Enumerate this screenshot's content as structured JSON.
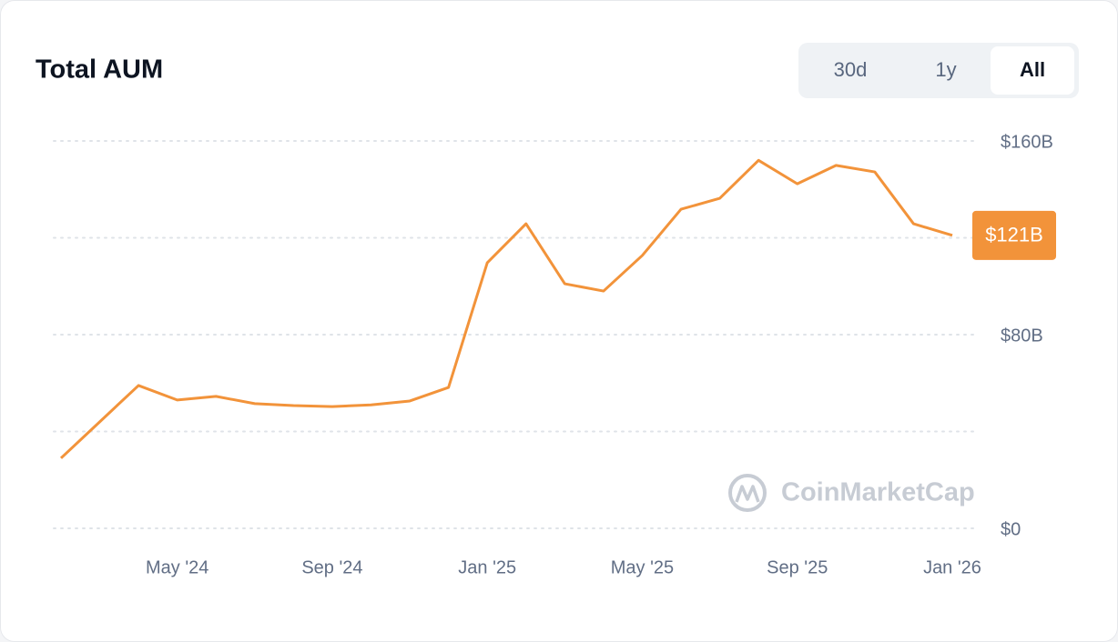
{
  "chart_data": {
    "type": "line",
    "title": "Total AUM",
    "range_options": [
      "30d",
      "1y",
      "All"
    ],
    "active_range": "All",
    "watermark": "CoinMarketCap",
    "x": [
      "2024-02",
      "2024-03",
      "2024-04",
      "2024-05",
      "2024-06",
      "2024-07",
      "2024-08",
      "2024-09",
      "2024-10",
      "2024-11",
      "2024-12",
      "2025-01",
      "2025-02",
      "2025-03",
      "2025-04",
      "2025-05",
      "2025-06",
      "2025-07",
      "2025-08",
      "2025-09",
      "2025-10",
      "2025-11",
      "2025-12",
      "2026-01"
    ],
    "series": [
      {
        "name": "Total AUM",
        "color": "#f2933a",
        "values": [
          29,
          44,
          59,
          53,
          54.5,
          51.5,
          50.7,
          50.3,
          51,
          52.6,
          58.2,
          109.7,
          125.8,
          101,
          98,
          112.7,
          131.8,
          136.3,
          152,
          142.3,
          149.9,
          147.2,
          125.8,
          121
        ],
        "value_labels": [
          null,
          null,
          null,
          null,
          null,
          null,
          null,
          null,
          null,
          null,
          null,
          null,
          null,
          null,
          null,
          null,
          null,
          null,
          null,
          null,
          null,
          null,
          null,
          "$121B"
        ]
      }
    ],
    "xlim": [
      "2024-02",
      "2026-01"
    ],
    "xticks": [
      {
        "value": "2024-05",
        "label": "May '24"
      },
      {
        "value": "2024-09",
        "label": "Sep '24"
      },
      {
        "value": "2025-01",
        "label": "Jan '25"
      },
      {
        "value": "2025-05",
        "label": "May '25"
      },
      {
        "value": "2025-09",
        "label": "Sep '25"
      },
      {
        "value": "2026-01",
        "label": "Jan '26"
      }
    ],
    "ylim": [
      0,
      160
    ],
    "yticks": [
      {
        "value": 0,
        "label": "$0"
      },
      {
        "value": 40,
        "label": null
      },
      {
        "value": 80,
        "label": "$80B"
      },
      {
        "value": 120,
        "label": null
      },
      {
        "value": 160,
        "label": "$160B"
      }
    ],
    "grid": true
  }
}
